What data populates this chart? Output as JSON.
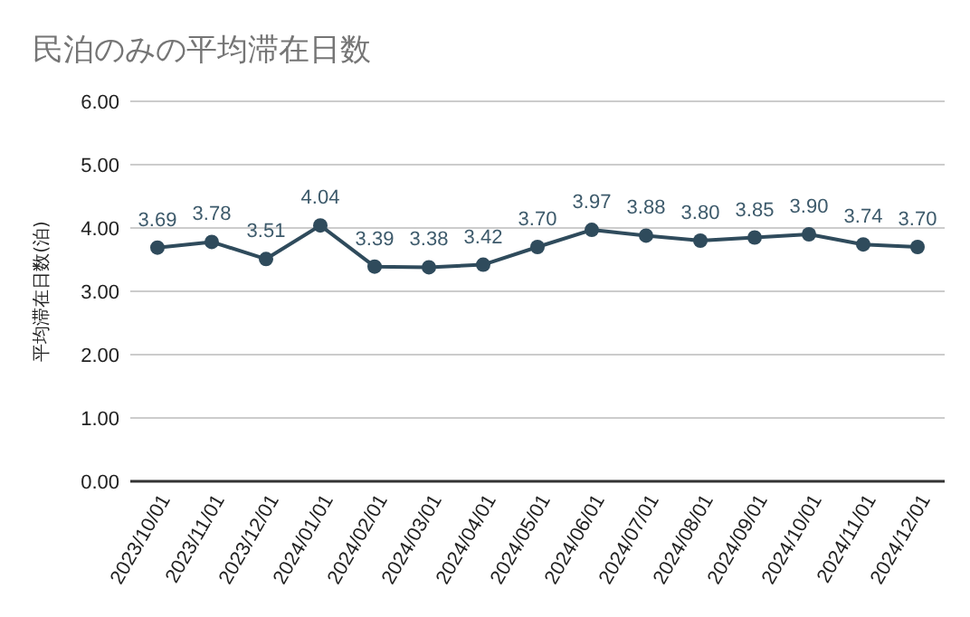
{
  "chart_data": {
    "type": "line",
    "title": "民泊のみの平均滞在日数",
    "ylabel": "平均滞在日数(泊)",
    "categories": [
      "2023/10/01",
      "2023/11/01",
      "2023/12/01",
      "2024/01/01",
      "2024/02/01",
      "2024/03/01",
      "2024/04/01",
      "2024/05/01",
      "2024/06/01",
      "2024/07/01",
      "2024/08/01",
      "2024/09/01",
      "2024/10/01",
      "2024/11/01",
      "2024/12/01"
    ],
    "series": [
      {
        "color": "#2f4b5c",
        "values": [
          3.69,
          3.78,
          3.51,
          4.04,
          3.39,
          3.38,
          3.42,
          3.7,
          3.97,
          3.88,
          3.8,
          3.85,
          3.9,
          3.74,
          3.7
        ],
        "value_labels": [
          "3.69",
          "3.78",
          "3.51",
          "4.04",
          "3.39",
          "3.38",
          "3.42",
          "3.70",
          "3.97",
          "3.88",
          "3.80",
          "3.85",
          "3.90",
          "3.74",
          "3.70"
        ]
      }
    ],
    "ylim": [
      0,
      6
    ],
    "yticks": [
      {
        "value": 0,
        "label": "0.00"
      },
      {
        "value": 1,
        "label": "1.00"
      },
      {
        "value": 2,
        "label": "2.00"
      },
      {
        "value": 3,
        "label": "3.00"
      },
      {
        "value": 4,
        "label": "4.00"
      },
      {
        "value": 5,
        "label": "5.00"
      },
      {
        "value": 6,
        "label": "6.00"
      }
    ],
    "grid": "y",
    "marker": "circle",
    "line_style": "solid"
  }
}
